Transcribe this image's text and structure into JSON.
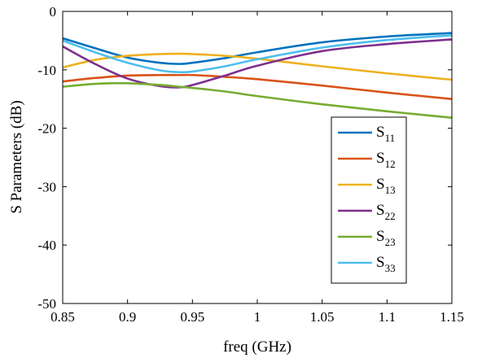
{
  "chart_data": {
    "type": "line",
    "title": "",
    "xlabel": "freq (GHz)",
    "ylabel": "S Parameters (dB)",
    "xlim": [
      0.85,
      1.15
    ],
    "ylim": [
      -50,
      0
    ],
    "xticks": [
      0.85,
      0.9,
      0.95,
      1,
      1.05,
      1.1,
      1.15
    ],
    "xtick_labels": [
      "0.85",
      "0.9",
      "0.95",
      "1",
      "1.05",
      "1.1",
      "1.15"
    ],
    "yticks": [
      -50,
      -40,
      -30,
      -20,
      -10,
      0
    ],
    "ytick_labels": [
      "-50",
      "-40",
      "-30",
      "-20",
      "-10",
      "0"
    ],
    "grid": false,
    "legend_position": "inside-right",
    "x": [
      0.85,
      0.875,
      0.9,
      0.925,
      0.94,
      0.95,
      0.975,
      1.0,
      1.05,
      1.1,
      1.15
    ],
    "series": [
      {
        "name": "11",
        "color": "#0072BD",
        "values": [
          -4.6,
          -6.3,
          -7.9,
          -8.8,
          -9.0,
          -8.8,
          -8.0,
          -7.0,
          -5.3,
          -4.3,
          -3.7
        ]
      },
      {
        "name": "12",
        "color": "#D95319",
        "values": [
          -12.0,
          -11.4,
          -11.0,
          -10.9,
          -10.9,
          -10.9,
          -11.2,
          -11.6,
          -12.7,
          -13.9,
          -15.0
        ]
      },
      {
        "name": "13",
        "color": "#EDB120",
        "values": [
          -9.6,
          -8.3,
          -7.6,
          -7.3,
          -7.25,
          -7.3,
          -7.6,
          -8.1,
          -9.4,
          -10.6,
          -11.7
        ]
      },
      {
        "name": "22",
        "color": "#7E2F8E",
        "values": [
          -6.0,
          -9.0,
          -11.5,
          -12.8,
          -13.0,
          -12.6,
          -11.0,
          -9.3,
          -6.8,
          -5.6,
          -4.8
        ]
      },
      {
        "name": "23",
        "color": "#77AC30",
        "values": [
          -12.9,
          -12.4,
          -12.3,
          -12.6,
          -12.9,
          -13.1,
          -13.7,
          -14.5,
          -15.9,
          -17.1,
          -18.2
        ]
      },
      {
        "name": "33",
        "color": "#4DBEEE",
        "values": [
          -5.0,
          -7.0,
          -8.8,
          -10.1,
          -10.4,
          -10.3,
          -9.4,
          -8.2,
          -6.2,
          -4.9,
          -4.1
        ]
      }
    ],
    "legend_prefix": "S"
  }
}
